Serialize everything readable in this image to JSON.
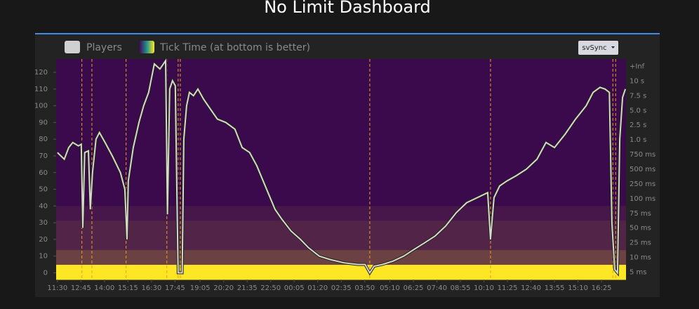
{
  "title": "No Limit Dashboard",
  "chart_data": {
    "type": "line-heatmap",
    "legend": [
      "Players",
      "Tick Time (at bottom is better)"
    ],
    "button": "svSync",
    "xlim": [
      -4,
      1813
    ],
    "xticks": [
      {
        "value": 0,
        "label": "11:30"
      },
      {
        "value": 75,
        "label": "12:45"
      },
      {
        "value": 150,
        "label": "14:00"
      },
      {
        "value": 225,
        "label": "15:15"
      },
      {
        "value": 300,
        "label": "16:30"
      },
      {
        "value": 375,
        "label": "17:45"
      },
      {
        "value": 455,
        "label": "19:05"
      },
      {
        "value": 530,
        "label": "20:20"
      },
      {
        "value": 605,
        "label": "21:35"
      },
      {
        "value": 680,
        "label": "22:50"
      },
      {
        "value": 755,
        "label": "00:05"
      },
      {
        "value": 830,
        "label": "01:20"
      },
      {
        "value": 905,
        "label": "02:35"
      },
      {
        "value": 980,
        "label": "03:50"
      },
      {
        "value": 1060,
        "label": "05:10"
      },
      {
        "value": 1135,
        "label": "06:25"
      },
      {
        "value": 1210,
        "label": "07:40"
      },
      {
        "value": 1285,
        "label": "08:55"
      },
      {
        "value": 1360,
        "label": "10:10"
      },
      {
        "value": 1435,
        "label": "11:25"
      },
      {
        "value": 1510,
        "label": "12:40"
      },
      {
        "value": 1585,
        "label": "13:55"
      },
      {
        "value": 1660,
        "label": "15:10"
      },
      {
        "value": 1735,
        "label": "16:25"
      }
    ],
    "ylim": [
      -4,
      128
    ],
    "yticks": [
      0,
      10,
      20,
      30,
      40,
      50,
      60,
      70,
      80,
      90,
      100,
      110,
      120
    ],
    "y2ticks": [
      "+Inf",
      "10 s",
      "7.5 s",
      "5.0 s",
      "2.5 s",
      "1.0 s",
      "750 ms",
      "500 ms",
      "250 ms",
      "100 ms",
      "75 ms",
      "50 ms",
      "25 ms",
      "10 ms",
      "5 ms"
    ],
    "heatmap_intensity": [
      0,
      0,
      0,
      0,
      0,
      0,
      0,
      0,
      0,
      0,
      0.06,
      0.12,
      0.12,
      0.25,
      1
    ],
    "annotations": [
      78,
      110,
      219,
      349,
      385,
      392,
      996,
      1381,
      1771,
      1780
    ],
    "annotation_color": "#e8a020",
    "series": [
      {
        "name": "Players",
        "color": "#d8d8c8",
        "x": [
          0,
          22,
          36,
          49,
          67,
          76,
          81,
          87,
          99,
          105,
          112,
          123,
          134,
          152,
          175,
          201,
          215,
          222,
          226,
          242,
          260,
          275,
          291,
          309,
          327,
          345,
          351,
          358,
          367,
          376,
          385,
          398,
          403,
          412,
          421,
          434,
          448,
          466,
          488,
          510,
          537,
          566,
          589,
          613,
          636,
          667,
          694,
          716,
          745,
          775,
          801,
          835,
          869,
          913,
          958,
          981,
          996,
          1010,
          1036,
          1070,
          1104,
          1137,
          1171,
          1204,
          1238,
          1272,
          1305,
          1339,
          1372,
          1381,
          1392,
          1410,
          1433,
          1462,
          1495,
          1529,
          1558,
          1585,
          1619,
          1652,
          1686,
          1708,
          1730,
          1746,
          1760,
          1768,
          1777,
          1786,
          1793,
          1802,
          1811
        ],
        "values": [
          72,
          68,
          75,
          78,
          76,
          77,
          27,
          72,
          73,
          38,
          60,
          80,
          84,
          78,
          70,
          60,
          50,
          20,
          55,
          75,
          90,
          100,
          108,
          125,
          122,
          127,
          35,
          110,
          115,
          112,
          0,
          0,
          80,
          100,
          108,
          106,
          110,
          104,
          98,
          92,
          90,
          86,
          75,
          72,
          64,
          50,
          38,
          32,
          25,
          20,
          15,
          10,
          8,
          6,
          5,
          5,
          0,
          4,
          5,
          7,
          10,
          14,
          18,
          22,
          28,
          36,
          42,
          45,
          48,
          20,
          45,
          52,
          55,
          58,
          62,
          68,
          78,
          75,
          83,
          92,
          100,
          108,
          111,
          110,
          108,
          30,
          2,
          0,
          80,
          105,
          110
        ]
      }
    ]
  }
}
